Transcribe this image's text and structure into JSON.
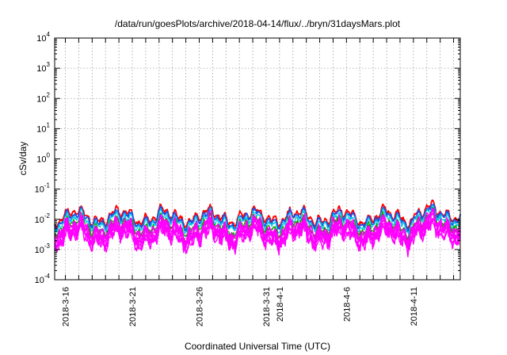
{
  "chart_data": {
    "type": "line",
    "title": "/data/run/goesPlots/archive/2018-04-14/flux/../bryn/31daysMars.plot",
    "xlabel": "Coordinated Universal Time (UTC)",
    "ylabel": "cSv/day",
    "yscale": "log",
    "ylim_exponents": [
      -4,
      4
    ],
    "y_ticks": [
      {
        "base": "10",
        "exp": "-4"
      },
      {
        "base": "10",
        "exp": "-3"
      },
      {
        "base": "10",
        "exp": "-2"
      },
      {
        "base": "10",
        "exp": "-1"
      },
      {
        "base": "10",
        "exp": "0"
      },
      {
        "base": "10",
        "exp": "1"
      },
      {
        "base": "10",
        "exp": "2"
      },
      {
        "base": "10",
        "exp": "3"
      },
      {
        "base": "10",
        "exp": "4"
      }
    ],
    "x_tick_labels": [
      "2018-3-16",
      "2018-3-21",
      "2018-3-26",
      "2018-3-31",
      "2018-4-1",
      "2018-4-6",
      "2018-4-11"
    ],
    "x_tick_days": [
      0,
      5,
      10,
      15,
      16,
      21,
      26
    ],
    "xlim_days": [
      -0.8,
      29.5
    ],
    "grid": true,
    "series": [
      {
        "color": "#ff0000",
        "level": 0.0125,
        "spread": 0.12
      },
      {
        "color": "#1a4fe6",
        "level": 0.0105,
        "spread": 0.12
      },
      {
        "color": "#00c8e8",
        "level": 0.0085,
        "spread": 0.14
      },
      {
        "color": "#00aa00",
        "level": 0.0062,
        "spread": 0.16
      },
      {
        "color": "#8b3a62",
        "level": 0.0052,
        "spread": 0.18
      },
      {
        "color": "#ff00ff",
        "level": 0.0036,
        "spread": 0.3
      }
    ]
  }
}
